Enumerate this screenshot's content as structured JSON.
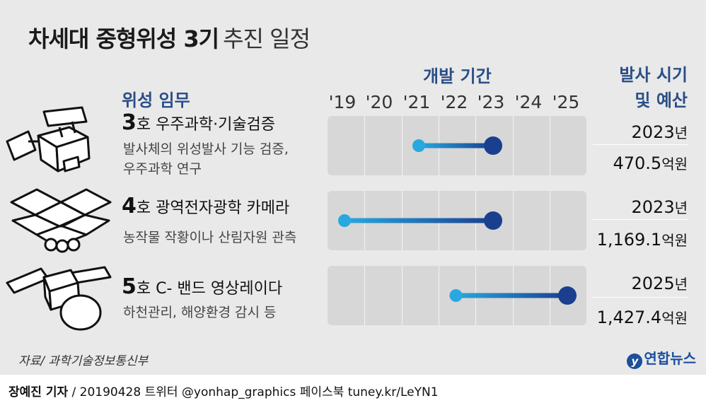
{
  "title": {
    "main": "차세대 중형위성 3기",
    "sub": "추진 일정"
  },
  "headers": {
    "development_period": "개발 기간",
    "launch_line1": "발사 시기",
    "launch_line2": "및 예산",
    "mission": "위성 임무"
  },
  "chart_data": {
    "type": "timeline",
    "x_tick_labels": [
      "'19",
      "'20",
      "'21",
      "'22",
      "'23",
      "'24",
      "'25"
    ],
    "xlim": [
      2019,
      2025
    ],
    "series": [
      {
        "number": "3",
        "suffix": "호",
        "name": "우주과학·기술검증",
        "desc_line1": "발사체의 위성발사 기능 검증,",
        "desc_line2": "우주과학 연구",
        "start": 2021,
        "end": 2023,
        "launch_year": "2023",
        "budget": "470.5"
      },
      {
        "number": "4",
        "suffix": "호",
        "name": "광역전자광학 카메라",
        "desc_line1": "농작물 작황이나 산림자원 관측",
        "desc_line2": "",
        "start": 2019,
        "end": 2023,
        "launch_year": "2023",
        "budget": "1,169.1"
      },
      {
        "number": "5",
        "suffix": "호",
        "name": "C- 밴드 영상레이다",
        "desc_line1": "하천관리, 해양환경 감시 등",
        "desc_line2": "",
        "start": 2022,
        "end": 2025,
        "launch_year": "2025",
        "budget": "1,427.4"
      }
    ],
    "units": {
      "year": "년",
      "budget": "억원"
    },
    "colors": {
      "bar_start": "#29a8e0",
      "bar_end": "#1a3f8f",
      "track": "#d7d7d7",
      "header": "#2a4e86"
    }
  },
  "source": "자료/ 과학기술정보통신부",
  "logo": {
    "mark": "y",
    "text": "연합뉴스"
  },
  "footer": {
    "author": "장예진 기자",
    "rest": " / 20190428 트위터 @yonhap_graphics  페이스북 tuney.kr/LeYN1"
  },
  "icons": [
    "satellite-3-icon",
    "satellite-4-icon",
    "satellite-5-icon"
  ]
}
